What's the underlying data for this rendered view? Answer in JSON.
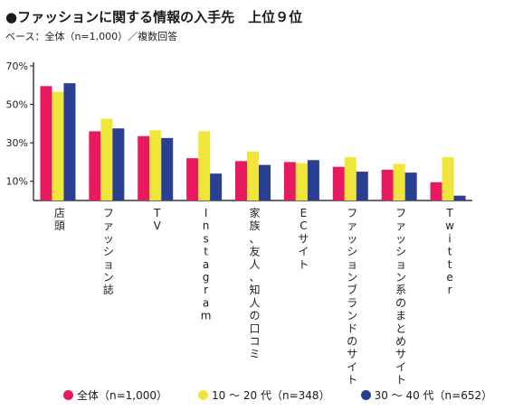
{
  "header": {
    "title": "●ファッションに関する情報の入手先　上位９位",
    "subtitle": "ベース：全体（n=1,000）／複数回答"
  },
  "colors": {
    "all": "#e8195e",
    "age_10_20": "#f0e63a",
    "age_30_40": "#283f92",
    "axis": "#111111",
    "grid": "#cccccc"
  },
  "chart_data": {
    "type": "bar",
    "categories": [
      "店頭",
      "ファッション誌",
      "TV",
      "Instagram",
      "家族、友人、知人の口コミ",
      "ECサイト",
      "ファッションブランドのサイト",
      "ファッション系のまとめサイト",
      "Twitter"
    ],
    "series": [
      {
        "name": "全体（n=1,000）",
        "color": "#e8195e",
        "values": [
          59.5,
          36.0,
          33.5,
          22.0,
          20.5,
          20.0,
          17.5,
          16.0,
          9.5
        ]
      },
      {
        "name": "10 〜 20 代（n=348）",
        "color": "#f0e63a",
        "values": [
          56.5,
          42.5,
          36.5,
          36.0,
          25.5,
          19.5,
          22.5,
          19.0,
          22.5
        ]
      },
      {
        "name": "30 〜 40 代（n=652）",
        "color": "#283f92",
        "values": [
          61.0,
          37.5,
          32.5,
          14.0,
          18.5,
          21.0,
          15.0,
          14.5,
          2.5
        ]
      }
    ],
    "yticks": [
      "10%",
      "30%",
      "50%",
      "70%"
    ],
    "ytick_values": [
      10,
      30,
      50,
      70
    ],
    "ylim": [
      0,
      70
    ],
    "grid": false,
    "legend_position": "bottom"
  }
}
